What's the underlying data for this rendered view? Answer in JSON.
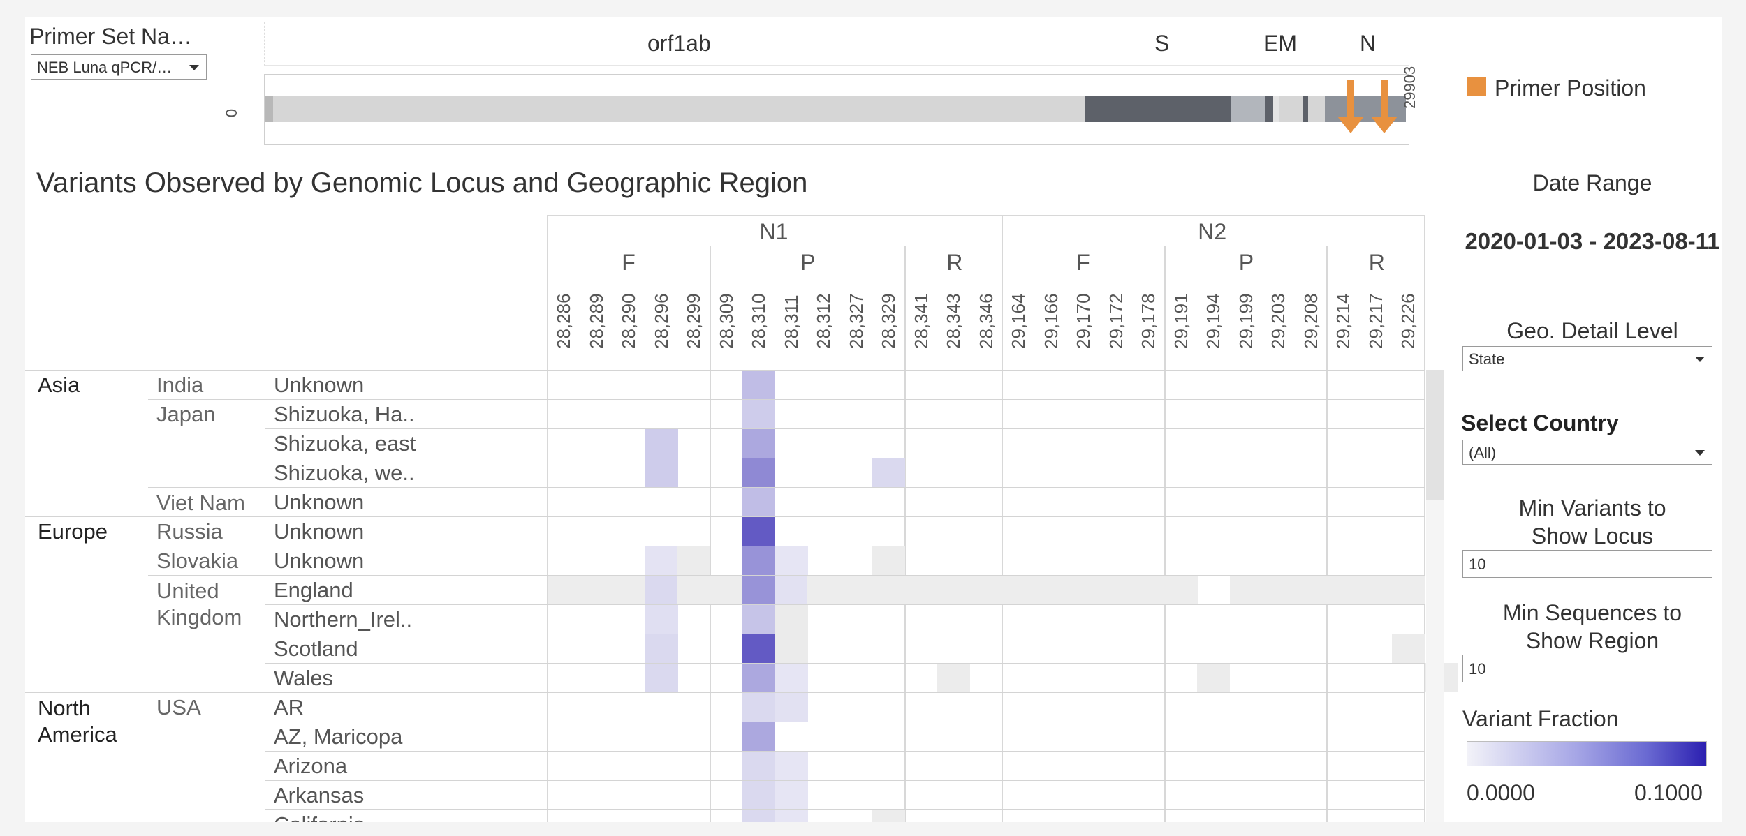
{
  "primer_set": {
    "title": "Primer Set Na…",
    "selected": "NEB Luna qPCR/…"
  },
  "genome": {
    "genes": [
      "orf1ab",
      "S",
      "EM",
      "N"
    ],
    "start": "0",
    "end": "29903",
    "legend_label": "Primer Position",
    "primer_color": "#e8913f",
    "segment_colors": [
      "#b8b8b8",
      "#d6d6d6",
      "#5d6169",
      "#b2b6bc",
      "#d6d6d6",
      "#8d929a"
    ]
  },
  "heatmap": {
    "title": "Variants Observed by Genomic Locus and Geographic Region",
    "groups": [
      {
        "name": "N1",
        "subgroups": [
          {
            "name": "F",
            "loci": [
              "28,286",
              "28,289",
              "28,290",
              "28,296",
              "28,299"
            ]
          },
          {
            "name": "P",
            "loci": [
              "28,309",
              "28,310",
              "28,311",
              "28,312",
              "28,327",
              "28,329"
            ]
          },
          {
            "name": "R",
            "loci": [
              "28,341",
              "28,343",
              "28,346"
            ]
          }
        ]
      },
      {
        "name": "N2",
        "subgroups": [
          {
            "name": "F",
            "loci": [
              "29,164",
              "29,166",
              "29,170",
              "29,172",
              "29,178"
            ]
          },
          {
            "name": "P",
            "loci": [
              "29,191",
              "29,194",
              "29,199",
              "29,203",
              "29,208"
            ]
          },
          {
            "name": "R",
            "loci": [
              "29,214",
              "29,217",
              "29,226"
            ]
          }
        ]
      }
    ],
    "rows": [
      {
        "region": "Asia",
        "country": "India",
        "subregion": "Unknown"
      },
      {
        "region": "",
        "country": "Japan",
        "subregion": "Shizuoka, Ha.."
      },
      {
        "region": "",
        "country": "",
        "subregion": "Shizuoka, east"
      },
      {
        "region": "",
        "country": "",
        "subregion": "Shizuoka, we.."
      },
      {
        "region": "",
        "country": "Viet Nam",
        "subregion": "Unknown"
      },
      {
        "region": "Europe",
        "country": "Russia",
        "subregion": "Unknown"
      },
      {
        "region": "",
        "country": "Slovakia",
        "subregion": "Unknown"
      },
      {
        "region": "",
        "country": "United Kingdom",
        "subregion": "England"
      },
      {
        "region": "",
        "country": "",
        "subregion": "Northern_Irel.."
      },
      {
        "region": "",
        "country": "",
        "subregion": "Scotland"
      },
      {
        "region": "",
        "country": "",
        "subregion": "Wales"
      },
      {
        "region": "North America",
        "country": "USA",
        "subregion": "AR"
      },
      {
        "region": "",
        "country": "",
        "subregion": "AZ, Maricopa"
      },
      {
        "region": "",
        "country": "",
        "subregion": "Arizona"
      },
      {
        "region": "",
        "country": "",
        "subregion": "Arkansas"
      },
      {
        "region": "",
        "country": "",
        "subregion": "California"
      }
    ],
    "cells": [
      {
        "row": 0,
        "col": 6,
        "v": 0.025
      },
      {
        "row": 1,
        "col": 6,
        "v": 0.018
      },
      {
        "row": 2,
        "col": 3,
        "v": 0.018
      },
      {
        "row": 2,
        "col": 6,
        "v": 0.035
      },
      {
        "row": 3,
        "col": 3,
        "v": 0.018
      },
      {
        "row": 3,
        "col": 6,
        "v": 0.05
      },
      {
        "row": 3,
        "col": 10,
        "v": 0.012
      },
      {
        "row": 4,
        "col": 6,
        "v": 0.025
      },
      {
        "row": 5,
        "col": 6,
        "v": 0.072
      },
      {
        "row": 6,
        "col": 3,
        "v": 0.007
      },
      {
        "row": 6,
        "col": 4,
        "v": 0.004
      },
      {
        "row": 6,
        "col": 6,
        "v": 0.045
      },
      {
        "row": 6,
        "col": 7,
        "v": 0.006
      },
      {
        "row": 6,
        "col": 10,
        "v": 0.004
      },
      {
        "row": 7,
        "col": 0,
        "v": 0.003
      },
      {
        "row": 7,
        "col": 1,
        "v": 0.003
      },
      {
        "row": 7,
        "col": 2,
        "v": 0.003
      },
      {
        "row": 7,
        "col": 3,
        "v": 0.012
      },
      {
        "row": 7,
        "col": 4,
        "v": 0.003
      },
      {
        "row": 7,
        "col": 5,
        "v": 0.003
      },
      {
        "row": 7,
        "col": 6,
        "v": 0.045
      },
      {
        "row": 7,
        "col": 7,
        "v": 0.008
      },
      {
        "row": 7,
        "col": 8,
        "v": 0.003
      },
      {
        "row": 7,
        "col": 9,
        "v": 0.003
      },
      {
        "row": 7,
        "col": 10,
        "v": 0.003
      },
      {
        "row": 7,
        "col": 11,
        "v": 0.003
      },
      {
        "row": 7,
        "col": 12,
        "v": 0.003
      },
      {
        "row": 7,
        "col": 13,
        "v": 0.003
      },
      {
        "row": 7,
        "col": 14,
        "v": 0.003
      },
      {
        "row": 7,
        "col": 15,
        "v": 0.003
      },
      {
        "row": 7,
        "col": 16,
        "v": 0.003
      },
      {
        "row": 7,
        "col": 17,
        "v": 0.003
      },
      {
        "row": 7,
        "col": 18,
        "v": 0.003
      },
      {
        "row": 7,
        "col": 19,
        "v": 0.003
      },
      {
        "row": 7,
        "col": 21,
        "v": 0.003
      },
      {
        "row": 7,
        "col": 22,
        "v": 0.003
      },
      {
        "row": 7,
        "col": 23,
        "v": 0.003
      },
      {
        "row": 7,
        "col": 24,
        "v": 0.003
      },
      {
        "row": 7,
        "col": 25,
        "v": 0.003
      },
      {
        "row": 7,
        "col": 26,
        "v": 0.003
      },
      {
        "row": 8,
        "col": 3,
        "v": 0.009
      },
      {
        "row": 8,
        "col": 6,
        "v": 0.022
      },
      {
        "row": 8,
        "col": 7,
        "v": 0.005
      },
      {
        "row": 9,
        "col": 3,
        "v": 0.012
      },
      {
        "row": 9,
        "col": 6,
        "v": 0.072
      },
      {
        "row": 9,
        "col": 7,
        "v": 0.005
      },
      {
        "row": 9,
        "col": 26,
        "v": 0.004
      },
      {
        "row": 10,
        "col": 3,
        "v": 0.012
      },
      {
        "row": 10,
        "col": 6,
        "v": 0.035
      },
      {
        "row": 10,
        "col": 7,
        "v": 0.006
      },
      {
        "row": 10,
        "col": 12,
        "v": 0.004
      },
      {
        "row": 10,
        "col": 20,
        "v": 0.004
      },
      {
        "row": 10,
        "col": 27,
        "v": 0.004
      },
      {
        "row": 11,
        "col": 6,
        "v": 0.012
      },
      {
        "row": 11,
        "col": 7,
        "v": 0.008
      },
      {
        "row": 12,
        "col": 6,
        "v": 0.035
      },
      {
        "row": 13,
        "col": 6,
        "v": 0.012
      },
      {
        "row": 13,
        "col": 7,
        "v": 0.006
      },
      {
        "row": 14,
        "col": 6,
        "v": 0.012
      },
      {
        "row": 14,
        "col": 7,
        "v": 0.006
      },
      {
        "row": 15,
        "col": 6,
        "v": 0.012
      },
      {
        "row": 15,
        "col": 7,
        "v": 0.006
      },
      {
        "row": 15,
        "col": 10,
        "v": 0.004
      }
    ],
    "color_scale": {
      "min": 0.0,
      "max": 0.1,
      "low_color": "#f2f2f8",
      "high_color": "#2b1fb0"
    }
  },
  "controls": {
    "date_range_label": "Date Range",
    "date_range_value": "2020-01-03 - 2023-08-11",
    "geo_level_label": "Geo. Detail Level",
    "geo_level_value": "State",
    "country_label": "Select Country",
    "country_value": "(All)",
    "min_variants_label": "Min Variants to Show Locus",
    "min_variants_value": "10",
    "min_sequences_label": "Min Sequences to Show Region",
    "min_sequences_value": "10",
    "variant_fraction_label": "Variant Fraction",
    "variant_fraction_min": "0.0000",
    "variant_fraction_max": "0.1000"
  }
}
